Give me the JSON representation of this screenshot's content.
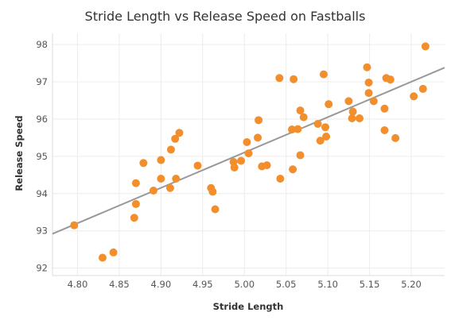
{
  "chart_data": {
    "type": "scatter",
    "title": "Stride Length vs Release Speed on Fastballs",
    "xlabel": "Stride Length",
    "ylabel": "Release Speed",
    "xlim": [
      4.77,
      5.24
    ],
    "ylim": [
      91.8,
      98.3
    ],
    "xticks": [
      "4.80",
      "4.85",
      "4.90",
      "4.95",
      "5.00",
      "5.05",
      "5.10",
      "5.15",
      "5.20"
    ],
    "yticks": [
      "92",
      "93",
      "94",
      "95",
      "96",
      "97",
      "98"
    ],
    "grid": true,
    "marker_color": "#F28E2B",
    "trendline": {
      "color": "#999999",
      "points": [
        [
          4.77,
          92.92
        ],
        [
          5.24,
          97.38
        ]
      ]
    },
    "points": [
      [
        4.796,
        93.15
      ],
      [
        4.83,
        92.28
      ],
      [
        4.843,
        92.42
      ],
      [
        4.868,
        93.35
      ],
      [
        4.87,
        93.72
      ],
      [
        4.87,
        94.28
      ],
      [
        4.879,
        94.82
      ],
      [
        4.891,
        94.08
      ],
      [
        4.9,
        94.4
      ],
      [
        4.9,
        94.9
      ],
      [
        4.911,
        94.15
      ],
      [
        4.912,
        95.18
      ],
      [
        4.917,
        95.47
      ],
      [
        4.918,
        94.4
      ],
      [
        4.922,
        95.63
      ],
      [
        4.944,
        94.75
      ],
      [
        4.96,
        94.15
      ],
      [
        4.962,
        94.05
      ],
      [
        4.965,
        93.58
      ],
      [
        4.987,
        94.85
      ],
      [
        4.988,
        94.7
      ],
      [
        4.996,
        94.88
      ],
      [
        5.003,
        95.38
      ],
      [
        5.005,
        95.08
      ],
      [
        5.016,
        95.5
      ],
      [
        5.017,
        95.97
      ],
      [
        5.021,
        94.73
      ],
      [
        5.027,
        94.76
      ],
      [
        5.042,
        97.1
      ],
      [
        5.043,
        94.4
      ],
      [
        5.057,
        95.72
      ],
      [
        5.058,
        94.65
      ],
      [
        5.059,
        97.07
      ],
      [
        5.064,
        95.73
      ],
      [
        5.067,
        96.23
      ],
      [
        5.067,
        95.03
      ],
      [
        5.071,
        96.05
      ],
      [
        5.088,
        95.87
      ],
      [
        5.091,
        95.42
      ],
      [
        5.095,
        97.2
      ],
      [
        5.097,
        95.78
      ],
      [
        5.098,
        95.53
      ],
      [
        5.101,
        96.4
      ],
      [
        5.125,
        96.48
      ],
      [
        5.129,
        96.02
      ],
      [
        5.13,
        96.2
      ],
      [
        5.138,
        96.02
      ],
      [
        5.147,
        97.39
      ],
      [
        5.149,
        96.98
      ],
      [
        5.149,
        96.7
      ],
      [
        5.155,
        96.48
      ],
      [
        5.168,
        96.28
      ],
      [
        5.168,
        95.7
      ],
      [
        5.17,
        97.1
      ],
      [
        5.175,
        97.06
      ],
      [
        5.181,
        95.49
      ],
      [
        5.203,
        96.61
      ],
      [
        5.214,
        96.81
      ],
      [
        5.217,
        97.95
      ]
    ]
  }
}
